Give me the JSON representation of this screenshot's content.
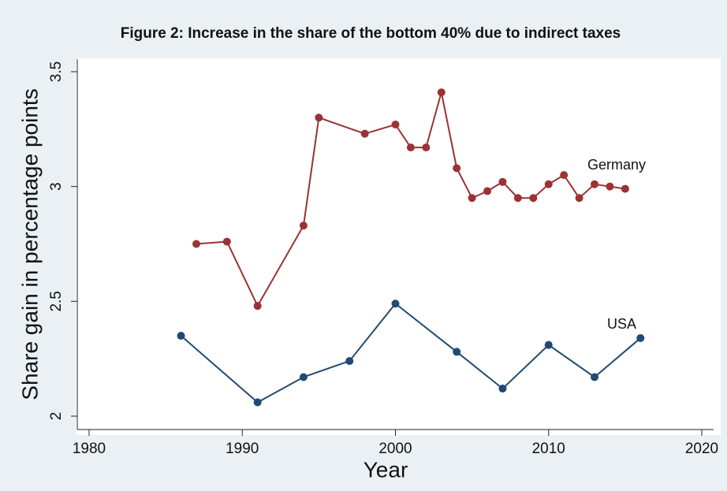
{
  "chart_data": {
    "type": "line",
    "title": "Figure 2: Increase in the share of the bottom 40% due to indirect taxes",
    "x_label": "Year",
    "y_label": "Share gain in percentage points",
    "series": [
      {
        "name": "Germany",
        "color": "#9b3235",
        "x": [
          1987,
          1989,
          1991,
          1994,
          1995,
          1998,
          2000,
          2001,
          2002,
          2003,
          2004,
          2005,
          2006,
          2007,
          2008,
          2009,
          2010,
          2011,
          2012,
          2013,
          2014,
          2015
        ],
        "values": [
          2.75,
          2.76,
          2.48,
          2.83,
          3.3,
          3.23,
          3.27,
          3.17,
          3.17,
          3.41,
          3.08,
          2.95,
          2.98,
          3.02,
          2.95,
          2.95,
          3.01,
          3.05,
          2.95,
          3.01,
          3.0,
          2.99
        ]
      },
      {
        "name": "USA",
        "color": "#1f4a73",
        "x": [
          1986,
          1991,
          1994,
          1997,
          2000,
          2004,
          2007,
          2010,
          2013,
          2016
        ],
        "values": [
          2.35,
          2.06,
          2.17,
          2.24,
          2.49,
          2.28,
          2.12,
          2.31,
          2.17,
          2.34
        ]
      }
    ],
    "xlim": [
      1980,
      2020
    ],
    "xticks": [
      1980,
      1990,
      2000,
      2010,
      2020
    ],
    "ylim": [
      2,
      3.5
    ],
    "yticks": [
      2,
      2.5,
      3,
      3.5
    ]
  }
}
